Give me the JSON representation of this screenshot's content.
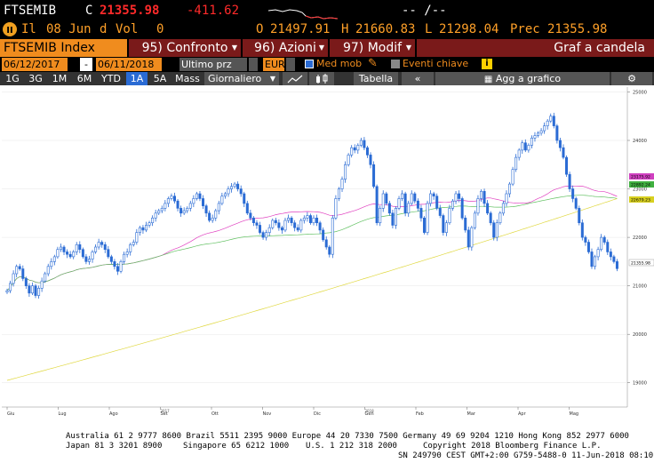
{
  "quote": {
    "ticker": "FTSEMIB",
    "close_label": "C",
    "close_value": "21355.98",
    "change": "-411.62",
    "dashes": "-- /--",
    "flag": "Il",
    "date": "08 Jun",
    "d": "d",
    "vol_label": "Vol",
    "vol_value": "0",
    "open_label": "O",
    "open_value": "21497.91",
    "high_label": "H",
    "high_value": "21660.83",
    "low_label": "L",
    "low_value": "21298.04",
    "prev_label": "Prec",
    "prev_value": "21355.98"
  },
  "menu": {
    "index_name": "FTSEMIB Index",
    "confronto_num": "95)",
    "confronto": "Confronto",
    "azioni_num": "96)",
    "azioni": "Azioni",
    "modif_num": "97)",
    "modif": "Modif",
    "graf": "Graf a candela"
  },
  "controls": {
    "start_date": "06/12/2017",
    "sep": "-",
    "end_date": "06/11/2018",
    "price_type": "Ultimo prz",
    "currency": "EUR",
    "med_mob": "Med mob",
    "eventi": "Eventi chiave"
  },
  "toolbar": {
    "b1D": "1G",
    "b3D": "3G",
    "b1M": "1M",
    "b6M": "6M",
    "bYTD": "YTD",
    "b1Y": "1A",
    "b5Y": "5A",
    "bMax": "Mass",
    "period": "Giornaliero",
    "tabella": "Tabella",
    "agg": "Agg a grafico"
  },
  "chart_data": {
    "type": "candlestick",
    "ylim": [
      18500,
      25100
    ],
    "yticks": [
      "25000",
      "24000",
      "23000",
      "22000",
      "21000",
      "20000",
      "19000"
    ],
    "months": [
      "Giu",
      "Lug",
      "Ago",
      "Set",
      "Ott",
      "Nov",
      "Dic",
      "Gen",
      "Feb",
      "Mar",
      "Apr",
      "Mag"
    ],
    "year_labels": [
      "2017",
      "2018"
    ],
    "price_labels": [
      {
        "value": "23175.92",
        "color": "#d040c0"
      },
      {
        "value": "22892.24",
        "color": "#40b040"
      },
      {
        "value": "22679.23",
        "color": "#d8d020"
      },
      {
        "value": "21355.98",
        "color": "#ffffff"
      }
    ],
    "closes": [
      20900,
      21050,
      21250,
      21400,
      21350,
      21150,
      21000,
      20850,
      21000,
      20800,
      20950,
      21100,
      21250,
      21400,
      21500,
      21600,
      21750,
      21800,
      21700,
      21650,
      21600,
      21700,
      21850,
      21750,
      21600,
      21500,
      21550,
      21700,
      21800,
      21900,
      21850,
      21750,
      21600,
      21500,
      21400,
      21300,
      21500,
      21650,
      21700,
      21850,
      21900,
      22100,
      22200,
      22150,
      22250,
      22300,
      22400,
      22500,
      22550,
      22600,
      22700,
      22800,
      22850,
      22750,
      22600,
      22500,
      22550,
      22600,
      22700,
      22800,
      22900,
      22800,
      22650,
      22500,
      22350,
      22400,
      22550,
      22700,
      22850,
      22900,
      23000,
      23050,
      23100,
      23000,
      22900,
      22700,
      22500,
      22400,
      22300,
      22250,
      22100,
      22000,
      22100,
      22200,
      22350,
      22300,
      22200,
      22150,
      22350,
      22400,
      22300,
      22200,
      22150,
      22350,
      22400,
      22450,
      22300,
      22400,
      22300,
      22150,
      21950,
      21800,
      21650,
      22400,
      22800,
      23000,
      23200,
      23500,
      23700,
      23850,
      23800,
      23900,
      24000,
      23850,
      23700,
      23500,
      23050,
      22300,
      22600,
      22900,
      22700,
      22500,
      22250,
      22600,
      22800,
      22900,
      22500,
      22700,
      22900,
      22750,
      22600,
      22400,
      22100,
      22700,
      22900,
      22850,
      22600,
      22450,
      22100,
      22300,
      22600,
      22750,
      22900,
      22800,
      22400,
      22150,
      21800,
      22200,
      22500,
      22800,
      22950,
      22700,
      22500,
      22300,
      22000,
      22300,
      22500,
      22700,
      22900,
      23100,
      23400,
      23650,
      23800,
      23950,
      23800,
      23900,
      24050,
      24100,
      24150,
      24200,
      24300,
      24400,
      24500,
      24300,
      24000,
      23850,
      23650,
      23300,
      23000,
      22800,
      22600,
      22300,
      22000,
      21900,
      21700,
      21400,
      21600,
      21750,
      22000,
      21900,
      21700,
      21600,
      21500,
      21355
    ]
  },
  "footer": {
    "line1": "Australia 61 2 9777 8600 Brazil 5511 2395 9000 Europe 44 20 7330 7500 Germany 49 69 9204 1210 Hong Kong 852 2977 6000",
    "line2a": "Japan 81 3 3201 8900",
    "line2b": "Singapore 65 6212 1000",
    "line2c": "U.S. 1 212 318 2000",
    "line2d": "Copyright 2018 Bloomberg Finance L.P.",
    "line3": "SN 249790 CEST GMT+2:00 G759-5488-0 11-Jun-2018 08:10:06"
  }
}
